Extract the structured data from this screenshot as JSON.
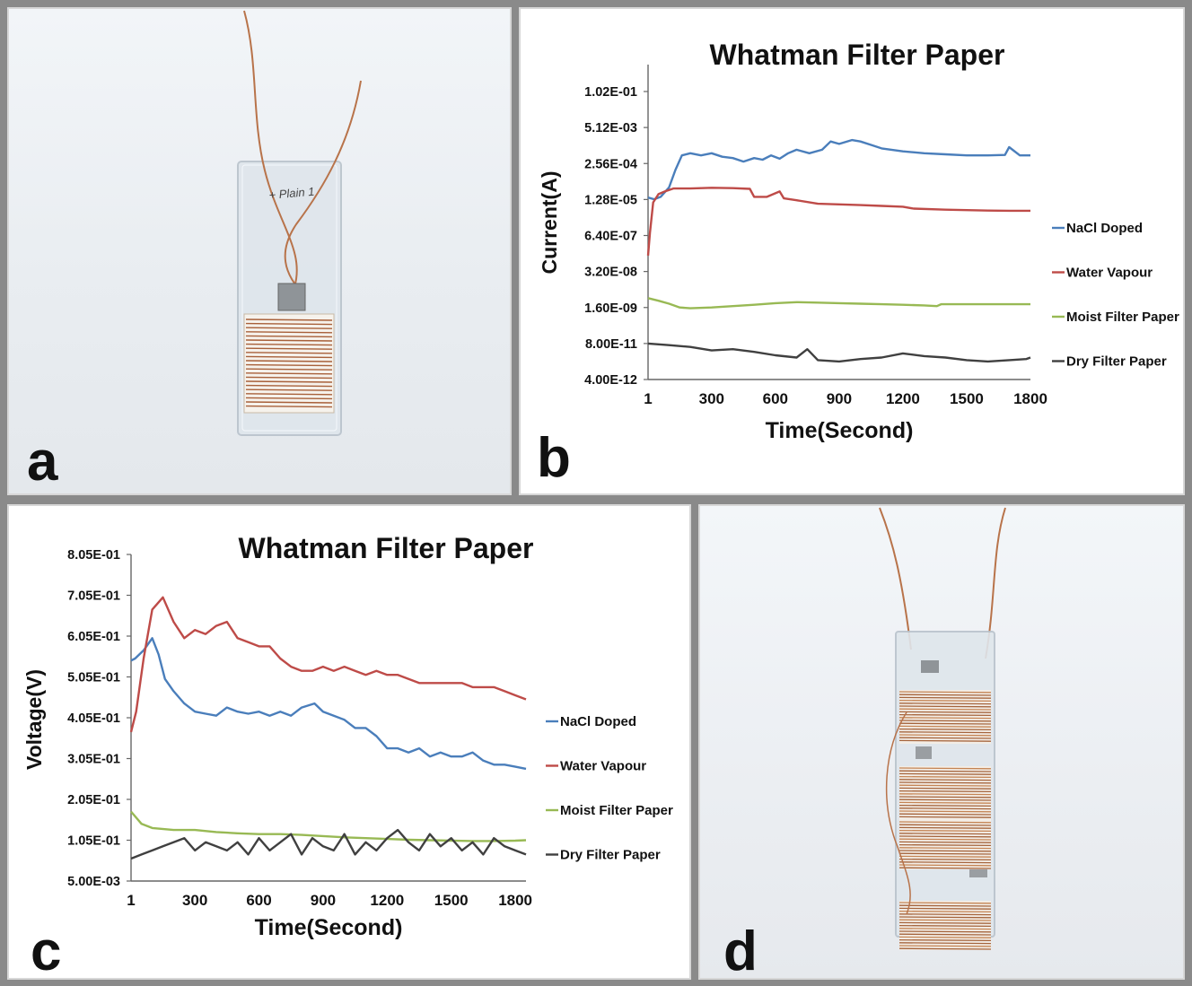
{
  "panels": {
    "a": {
      "letter": "a",
      "label": "+ Plain 1"
    },
    "b": {
      "letter": "b"
    },
    "c": {
      "letter": "c"
    },
    "d": {
      "letter": "d"
    }
  },
  "colors": {
    "nacl": "#4a7ebb",
    "water": "#be4b48",
    "moist": "#98b954",
    "dry": "#404040",
    "copper": "#b8734a"
  },
  "chart_data": [
    {
      "id": "b",
      "type": "line",
      "title": "Whatman Filter Paper",
      "xlabel": "Time(Second)",
      "ylabel": "Current(A)",
      "xlim": [
        1,
        1800
      ],
      "xticks": [
        1,
        300,
        600,
        900,
        1200,
        1500,
        1800
      ],
      "xtick_labels": [
        "1",
        "300",
        "600",
        "900",
        "1200",
        "1500",
        "1800"
      ],
      "yscale": "log",
      "ytick_labels": [
        "4.00E-12",
        "8.00E-11",
        "1.60E-09",
        "3.20E-08",
        "6.40E-07",
        "1.28E-05",
        "2.56E-04",
        "5.12E-03",
        "1.02E-01"
      ],
      "grid": false,
      "legend": "right",
      "series": [
        {
          "name": "NaCl Doped",
          "color_key": "nacl",
          "x": [
            1,
            30,
            60,
            100,
            130,
            160,
            200,
            250,
            300,
            350,
            400,
            450,
            500,
            540,
            580,
            620,
            660,
            700,
            760,
            820,
            860,
            900,
            960,
            1000,
            1050,
            1100,
            1200,
            1300,
            1400,
            1500,
            1600,
            1680,
            1700,
            1750,
            1800
          ],
          "y": [
            1.5e-05,
            1.3e-05,
            1.6e-05,
            3.5e-05,
            0.00015,
            0.0005,
            0.0006,
            0.0005,
            0.0006,
            0.00045,
            0.0004,
            0.0003,
            0.0004,
            0.00035,
            0.0005,
            0.00038,
            0.0006,
            0.0008,
            0.0006,
            0.0008,
            0.0016,
            0.0013,
            0.0018,
            0.0016,
            0.0012,
            0.0009,
            0.0007,
            0.0006,
            0.00055,
            0.0005,
            0.0005,
            0.00052,
            0.001,
            0.0005,
            0.0005
          ]
        },
        {
          "name": "Water Vapour",
          "color_key": "water",
          "x": [
            1,
            10,
            25,
            50,
            80,
            120,
            200,
            300,
            400,
            480,
            500,
            560,
            620,
            640,
            700,
            800,
            900,
            1000,
            1100,
            1200,
            1250,
            1400,
            1500,
            1600,
            1700,
            1800
          ],
          "y": [
            1.2e-07,
            8e-07,
            1e-05,
            2e-05,
            2.5e-05,
            3.2e-05,
            3.2e-05,
            3.4e-05,
            3.3e-05,
            3.1e-05,
            1.6e-05,
            1.6e-05,
            2.5e-05,
            1.4e-05,
            1.2e-05,
            9e-06,
            8.5e-06,
            8e-06,
            7.5e-06,
            7e-06,
            6e-06,
            5.5e-06,
            5.3e-06,
            5.1e-06,
            5e-06,
            5e-06
          ]
        },
        {
          "name": "Moist Filter Paper",
          "color_key": "moist",
          "x": [
            1,
            50,
            100,
            150,
            200,
            300,
            400,
            500,
            600,
            700,
            800,
            900,
            1000,
            1100,
            1200,
            1300,
            1360,
            1380,
            1500,
            1600,
            1700,
            1800
          ],
          "y": [
            3.5e-09,
            2.8e-09,
            2.2e-09,
            1.6e-09,
            1.5e-09,
            1.6e-09,
            1.8e-09,
            2e-09,
            2.3e-09,
            2.5e-09,
            2.4e-09,
            2.3e-09,
            2.2e-09,
            2.1e-09,
            2e-09,
            1.9e-09,
            1.8e-09,
            2.1e-09,
            2.1e-09,
            2.1e-09,
            2.1e-09,
            2.1e-09
          ]
        },
        {
          "name": "Dry Filter Paper",
          "color_key": "dry",
          "x": [
            1,
            100,
            200,
            300,
            400,
            500,
            600,
            700,
            750,
            800,
            900,
            1000,
            1100,
            1200,
            1300,
            1400,
            1500,
            1600,
            1700,
            1780,
            1800
          ],
          "y": [
            8e-11,
            7e-11,
            6e-11,
            4.5e-11,
            5e-11,
            4e-11,
            3e-11,
            2.5e-11,
            5e-11,
            2e-11,
            1.8e-11,
            2.2e-11,
            2.5e-11,
            3.5e-11,
            2.8e-11,
            2.5e-11,
            2e-11,
            1.8e-11,
            2e-11,
            2.2e-11,
            2.5e-11
          ]
        }
      ]
    },
    {
      "id": "c",
      "type": "line",
      "title": "Whatman Filter Paper",
      "xlabel": "Time(Second)",
      "ylabel": "Voltage(V)",
      "xlim": [
        1,
        1850
      ],
      "xticks": [
        1,
        300,
        600,
        900,
        1200,
        1500,
        1800
      ],
      "xtick_labels": [
        "1",
        "300",
        "600",
        "900",
        "1200",
        "1500",
        "1800"
      ],
      "ylim": [
        0.005,
        0.805
      ],
      "ytick_labels": [
        "5.00E-03",
        "1.05E-01",
        "2.05E-01",
        "3.05E-01",
        "4.05E-01",
        "5.05E-01",
        "6.05E-01",
        "7.05E-01",
        "8.05E-01"
      ],
      "grid": false,
      "legend": "right",
      "series": [
        {
          "name": "NaCl Doped",
          "color_key": "nacl",
          "x": [
            1,
            20,
            60,
            100,
            130,
            160,
            200,
            250,
            300,
            350,
            400,
            450,
            500,
            550,
            600,
            650,
            700,
            750,
            800,
            860,
            900,
            950,
            1000,
            1050,
            1100,
            1150,
            1200,
            1250,
            1300,
            1350,
            1400,
            1450,
            1500,
            1550,
            1600,
            1650,
            1700,
            1750,
            1800,
            1850
          ],
          "y": [
            0.545,
            0.55,
            0.57,
            0.6,
            0.56,
            0.5,
            0.47,
            0.44,
            0.42,
            0.415,
            0.41,
            0.43,
            0.42,
            0.415,
            0.42,
            0.41,
            0.42,
            0.41,
            0.43,
            0.44,
            0.42,
            0.41,
            0.4,
            0.38,
            0.38,
            0.36,
            0.33,
            0.33,
            0.32,
            0.33,
            0.31,
            0.32,
            0.31,
            0.31,
            0.32,
            0.3,
            0.29,
            0.29,
            0.285,
            0.28
          ]
        },
        {
          "name": "Water Vapour",
          "color_key": "water",
          "x": [
            1,
            25,
            60,
            100,
            150,
            200,
            250,
            300,
            350,
            400,
            450,
            500,
            550,
            600,
            650,
            700,
            750,
            800,
            850,
            900,
            950,
            1000,
            1050,
            1100,
            1150,
            1200,
            1250,
            1300,
            1350,
            1400,
            1450,
            1500,
            1550,
            1600,
            1650,
            1700,
            1750,
            1800,
            1850
          ],
          "y": [
            0.37,
            0.42,
            0.55,
            0.67,
            0.7,
            0.64,
            0.6,
            0.62,
            0.61,
            0.63,
            0.64,
            0.6,
            0.59,
            0.58,
            0.58,
            0.55,
            0.53,
            0.52,
            0.52,
            0.53,
            0.52,
            0.53,
            0.52,
            0.51,
            0.52,
            0.51,
            0.51,
            0.5,
            0.49,
            0.49,
            0.49,
            0.49,
            0.49,
            0.48,
            0.48,
            0.48,
            0.47,
            0.46,
            0.45
          ]
        },
        {
          "name": "Moist Filter Paper",
          "color_key": "moist",
          "x": [
            1,
            50,
            100,
            200,
            300,
            400,
            500,
            600,
            700,
            800,
            900,
            1000,
            1100,
            1200,
            1300,
            1400,
            1500,
            1600,
            1700,
            1800,
            1850
          ],
          "y": [
            0.175,
            0.145,
            0.135,
            0.13,
            0.13,
            0.125,
            0.122,
            0.12,
            0.12,
            0.118,
            0.115,
            0.112,
            0.11,
            0.108,
            0.106,
            0.105,
            0.104,
            0.103,
            0.103,
            0.104,
            0.105
          ]
        },
        {
          "name": "Dry Filter Paper",
          "color_key": "dry",
          "x": [
            1,
            50,
            100,
            150,
            200,
            250,
            300,
            350,
            400,
            450,
            500,
            550,
            600,
            650,
            700,
            750,
            800,
            850,
            900,
            950,
            1000,
            1050,
            1100,
            1150,
            1200,
            1250,
            1300,
            1350,
            1400,
            1450,
            1500,
            1550,
            1600,
            1650,
            1700,
            1750,
            1800,
            1850
          ],
          "y": [
            0.06,
            0.07,
            0.08,
            0.09,
            0.1,
            0.11,
            0.08,
            0.1,
            0.09,
            0.08,
            0.1,
            0.07,
            0.11,
            0.08,
            0.1,
            0.12,
            0.07,
            0.11,
            0.09,
            0.08,
            0.12,
            0.07,
            0.1,
            0.08,
            0.11,
            0.13,
            0.1,
            0.08,
            0.12,
            0.09,
            0.11,
            0.08,
            0.1,
            0.07,
            0.11,
            0.09,
            0.08,
            0.07
          ]
        }
      ]
    }
  ]
}
